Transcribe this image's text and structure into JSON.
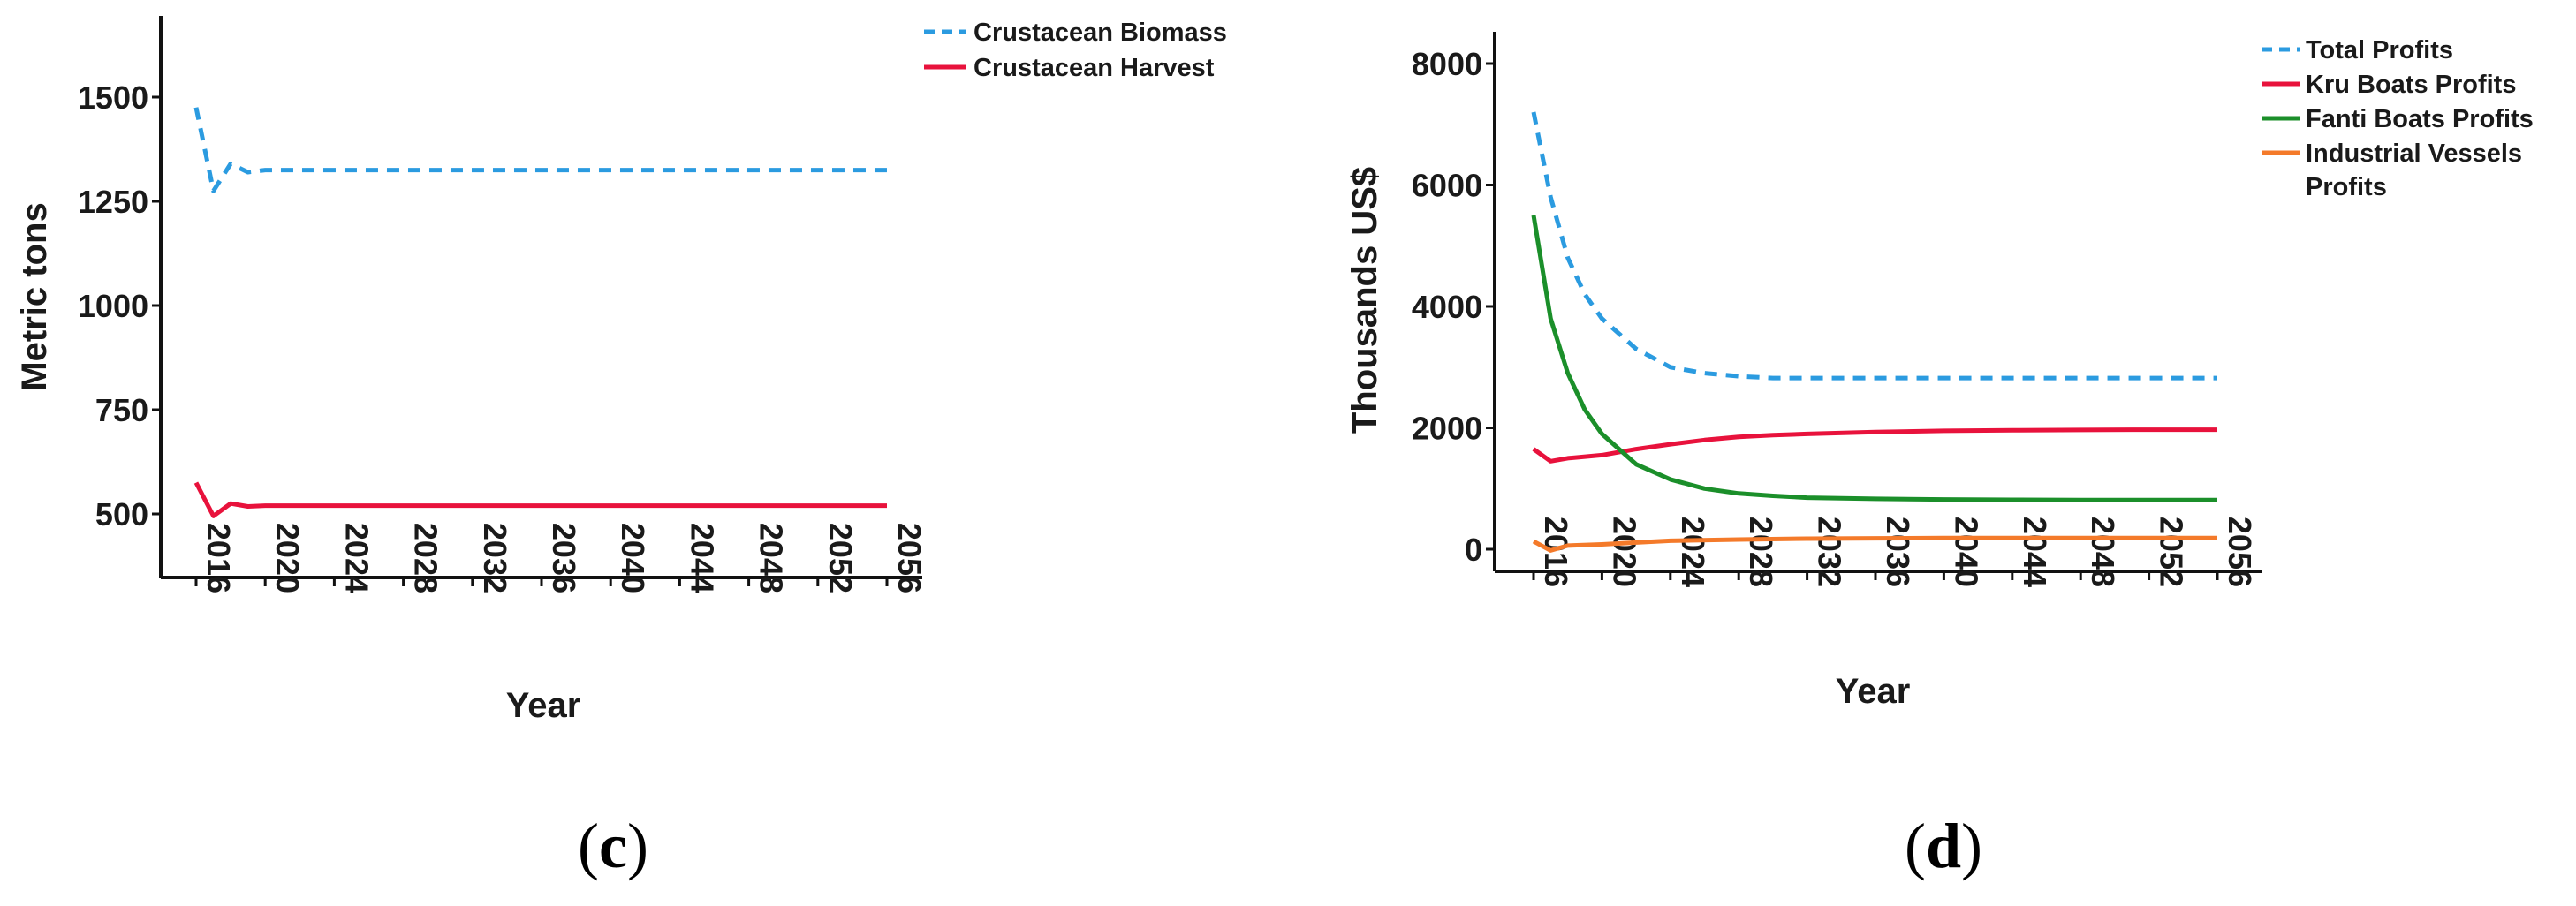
{
  "colors": {
    "biomass": "#2b9be0",
    "harvest": "#e8123c",
    "total": "#2b9be0",
    "kru": "#e8123c",
    "fanti": "#1b8f2a",
    "industrial": "#f47a2a"
  },
  "chart_data": [
    {
      "id": "c",
      "type": "line",
      "panel_label": {
        "open": "(",
        "letter": "c",
        "close": ")"
      },
      "xlabel": "Year",
      "ylabel": "Metric tons",
      "xlim": [
        2016,
        2056
      ],
      "ylim": [
        350,
        1680
      ],
      "yticks": [
        500,
        750,
        1000,
        1250,
        1500
      ],
      "xticks": [
        2016,
        2020,
        2024,
        2028,
        2032,
        2036,
        2040,
        2044,
        2048,
        2052,
        2056
      ],
      "grid": false,
      "legend_position": "top-right",
      "series": [
        {
          "name": "Crustacean Biomass",
          "color_key": "biomass",
          "dash": true,
          "x": [
            2016,
            2017,
            2018,
            2019,
            2020,
            2021,
            2056
          ],
          "y": [
            1475,
            1275,
            1340,
            1320,
            1325,
            1325,
            1325
          ]
        },
        {
          "name": "Crustacean Harvest",
          "color_key": "harvest",
          "dash": false,
          "x": [
            2016,
            2017,
            2018,
            2019,
            2020,
            2021,
            2056
          ],
          "y": [
            575,
            495,
            525,
            518,
            520,
            520,
            520
          ]
        }
      ]
    },
    {
      "id": "d",
      "type": "line",
      "panel_label": {
        "open": "(",
        "letter": "d",
        "close": ")"
      },
      "xlabel": "Year",
      "ylabel": "Thousands US$",
      "xlim": [
        2016,
        2056
      ],
      "ylim": [
        -400,
        8500
      ],
      "yticks": [
        0,
        2000,
        4000,
        6000,
        8000
      ],
      "xticks": [
        2016,
        2020,
        2024,
        2028,
        2032,
        2036,
        2040,
        2044,
        2048,
        2052,
        2056
      ],
      "grid": false,
      "legend_position": "top-right",
      "series": [
        {
          "name": "Total Profits",
          "color_key": "total",
          "dash": true,
          "x": [
            2016,
            2017,
            2018,
            2019,
            2020,
            2022,
            2024,
            2026,
            2028,
            2030,
            2032,
            2036,
            2040,
            2044,
            2048,
            2052,
            2056
          ],
          "y": [
            7200,
            5800,
            4800,
            4200,
            3800,
            3300,
            3000,
            2900,
            2850,
            2820,
            2820,
            2820,
            2820,
            2820,
            2820,
            2820,
            2820
          ]
        },
        {
          "name": "Kru Boats Profits",
          "color_key": "kru",
          "dash": false,
          "x": [
            2016,
            2017,
            2018,
            2020,
            2022,
            2024,
            2026,
            2028,
            2030,
            2032,
            2036,
            2040,
            2044,
            2048,
            2052,
            2056
          ],
          "y": [
            1650,
            1450,
            1500,
            1550,
            1650,
            1730,
            1800,
            1850,
            1880,
            1900,
            1930,
            1950,
            1960,
            1965,
            1970,
            1970
          ]
        },
        {
          "name": "Fanti Boats Profits",
          "color_key": "fanti",
          "dash": false,
          "x": [
            2016,
            2017,
            2018,
            2019,
            2020,
            2022,
            2024,
            2026,
            2028,
            2030,
            2032,
            2036,
            2040,
            2044,
            2048,
            2052,
            2056
          ],
          "y": [
            5500,
            3800,
            2900,
            2300,
            1900,
            1400,
            1150,
            1000,
            920,
            880,
            850,
            830,
            820,
            815,
            812,
            810,
            810
          ]
        },
        {
          "name": "Industrial Vessels Profits",
          "legend_lines": [
            "Industrial Vessels",
            "Profits"
          ],
          "color_key": "industrial",
          "dash": false,
          "x": [
            2016,
            2017,
            2018,
            2020,
            2022,
            2024,
            2028,
            2032,
            2036,
            2040,
            2044,
            2048,
            2052,
            2056
          ],
          "y": [
            130,
            -20,
            60,
            80,
            110,
            140,
            160,
            175,
            180,
            185,
            185,
            185,
            185,
            185
          ]
        }
      ]
    }
  ]
}
